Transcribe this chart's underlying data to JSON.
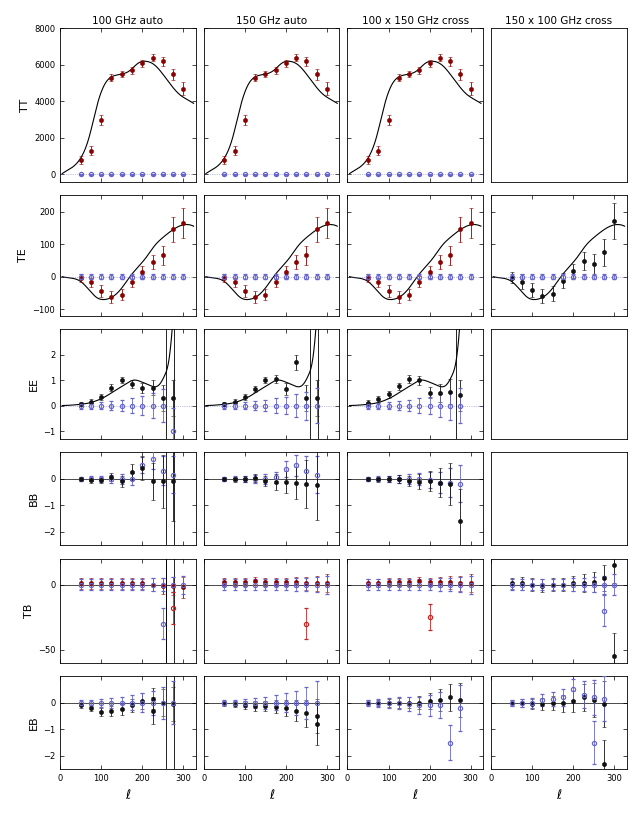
{
  "col_titles": [
    "100 GHz auto",
    "150 GHz auto",
    "100 x 150 GHz cross",
    "150 x 100 GHz cross"
  ],
  "row_labels": [
    "TT",
    "TE",
    "EE",
    "BB",
    "TB",
    "EB"
  ],
  "TT_theory_x": [
    5,
    30,
    50,
    70,
    90,
    110,
    130,
    150,
    170,
    190,
    210,
    230,
    250,
    270,
    290,
    310,
    325
  ],
  "TT_theory_y": [
    50,
    400,
    900,
    2000,
    3800,
    5000,
    5400,
    5500,
    5700,
    6100,
    6200,
    6000,
    5500,
    4900,
    4400,
    4100,
    3900
  ],
  "TE_theory_x": [
    5,
    30,
    50,
    70,
    90,
    110,
    130,
    150,
    170,
    190,
    210,
    230,
    250,
    270,
    290,
    310,
    325
  ],
  "TE_theory_y": [
    0,
    -5,
    -15,
    -40,
    -65,
    -70,
    -60,
    -35,
    0,
    30,
    60,
    95,
    120,
    140,
    155,
    160,
    155
  ],
  "EE_theory_x": [
    5,
    30,
    50,
    70,
    90,
    110,
    130,
    150,
    165,
    180,
    195,
    210,
    225,
    240,
    255,
    265,
    275,
    285,
    295,
    310,
    325
  ],
  "EE_theory_y": [
    0,
    0.02,
    0.05,
    0.1,
    0.2,
    0.35,
    0.55,
    0.75,
    0.9,
    1.0,
    0.95,
    0.85,
    0.75,
    0.8,
    1.2,
    1.8,
    3.5,
    7.0,
    14.0,
    30.0,
    50.0
  ],
  "TT_xd": [
    50,
    75,
    100,
    125,
    150,
    175,
    200,
    225,
    250,
    275,
    300
  ],
  "TT_yd_auto": [
    800,
    1300,
    3000,
    5300,
    5500,
    5700,
    6100,
    6400,
    6200,
    5500,
    4700
  ],
  "TT_ye_auto": [
    200,
    250,
    280,
    200,
    180,
    180,
    200,
    200,
    250,
    300,
    350
  ],
  "TT_yd_blue": [
    0,
    0,
    0,
    0,
    0,
    0,
    0,
    0,
    0,
    0,
    0
  ],
  "TT_ye_blue": [
    25,
    25,
    25,
    25,
    25,
    25,
    25,
    25,
    25,
    25,
    25
  ],
  "TE_xd": [
    50,
    75,
    100,
    125,
    150,
    175,
    200,
    225,
    250,
    275,
    300
  ],
  "TE_yd_auto": [
    -5,
    -18,
    -45,
    -62,
    -55,
    -15,
    15,
    45,
    65,
    145,
    165
  ],
  "TE_ye_auto": [
    12,
    15,
    18,
    18,
    18,
    18,
    18,
    22,
    28,
    38,
    45
  ],
  "TE_yd_blue": [
    0,
    0,
    0,
    0,
    0,
    0,
    0,
    0,
    0,
    0,
    0
  ],
  "TE_ye_blue": [
    8,
    8,
    8,
    8,
    8,
    8,
    8,
    8,
    8,
    8,
    8
  ],
  "TE_yd_col3": [
    -3,
    -15,
    -42,
    -60,
    -52,
    -12,
    18,
    48,
    38,
    75,
    170
  ],
  "TE_ye_col3": [
    18,
    22,
    22,
    22,
    22,
    22,
    22,
    28,
    32,
    42,
    55
  ],
  "EE_xd": [
    50,
    75,
    100,
    125,
    150,
    175,
    200,
    225,
    250,
    275
  ],
  "EE_yd_auto100": [
    0.05,
    0.15,
    0.35,
    0.7,
    1.0,
    0.85,
    0.7,
    0.7,
    0.3,
    0.3
  ],
  "EE_ye_auto100": [
    0.08,
    0.1,
    0.12,
    0.13,
    0.13,
    0.15,
    0.2,
    0.3,
    0.5,
    0.7
  ],
  "EE_yd_auto150": [
    0.05,
    0.15,
    0.35,
    0.65,
    1.0,
    1.05,
    0.65,
    1.7,
    0.3,
    0.3
  ],
  "EE_ye_auto150": [
    0.08,
    0.1,
    0.12,
    0.13,
    0.13,
    0.15,
    0.25,
    0.3,
    0.5,
    0.7
  ],
  "EE_yd_cross": [
    0.1,
    0.25,
    0.45,
    0.75,
    1.05,
    1.0,
    0.5,
    0.5,
    0.55,
    0.4
  ],
  "EE_ye_cross": [
    0.1,
    0.12,
    0.14,
    0.14,
    0.15,
    0.18,
    0.22,
    0.35,
    0.5,
    0.6
  ],
  "EE_yd_blue": [
    0,
    0,
    0,
    0,
    0,
    0,
    0,
    0,
    0,
    0
  ],
  "EE_ye_blue": [
    0.12,
    0.12,
    0.15,
    0.18,
    0.22,
    0.28,
    0.35,
    0.45,
    0.55,
    0.7
  ],
  "EE_ye_blue_100": [
    0.12,
    0.12,
    0.15,
    0.18,
    0.22,
    0.28,
    0.38,
    0.5,
    0.65,
    0.9
  ],
  "EE_yd_blue_100_vals": [
    0,
    0,
    0,
    0,
    0,
    0,
    0,
    0,
    0,
    -1.0
  ],
  "BB_xd": [
    50,
    75,
    100,
    125,
    150,
    175,
    200,
    225,
    250,
    275
  ],
  "BB_yd_100auto_blue": [
    0,
    0,
    0,
    0,
    0,
    0,
    0,
    0,
    0,
    0
  ],
  "BB_ye_100auto_blue": [
    0.08,
    0.1,
    0.12,
    0.15,
    0.18,
    0.22,
    0.3,
    0.4,
    0.55,
    0.7
  ],
  "BB_yd_100auto_black": [
    0.0,
    -0.05,
    -0.05,
    0.05,
    -0.1,
    0.25,
    0.4,
    -0.1,
    -0.1,
    -0.1
  ],
  "BB_ye_100auto_black": [
    0.08,
    0.1,
    0.12,
    0.15,
    0.2,
    0.3,
    0.45,
    0.7,
    1.0,
    1.5
  ],
  "BB_yd_100auto_blue_vals": [
    0,
    0,
    0,
    0,
    0,
    0,
    0.5,
    0.75,
    0.3,
    0.15
  ],
  "BB_yd_150auto_blue": [
    0,
    0,
    0,
    0,
    0,
    0,
    0,
    0,
    0,
    0
  ],
  "BB_ye_150auto_blue": [
    0.08,
    0.1,
    0.12,
    0.15,
    0.18,
    0.22,
    0.3,
    0.4,
    0.55,
    0.7
  ],
  "BB_yd_150auto_black": [
    0.0,
    -0.02,
    0.0,
    0.02,
    -0.08,
    -0.12,
    -0.12,
    -0.15,
    -0.2,
    -0.25
  ],
  "BB_ye_150auto_black": [
    0.08,
    0.1,
    0.12,
    0.15,
    0.2,
    0.3,
    0.4,
    0.6,
    0.9,
    1.3
  ],
  "BB_yd_150auto_blue_vals": [
    0,
    0,
    0,
    0,
    0,
    0.05,
    0.35,
    0.5,
    0.3,
    0.15
  ],
  "BB_yd_cross_blue": [
    0,
    0,
    0,
    0,
    0,
    0,
    0,
    0,
    0,
    0
  ],
  "BB_ye_cross_blue": [
    0.08,
    0.1,
    0.12,
    0.15,
    0.18,
    0.22,
    0.3,
    0.4,
    0.55,
    0.7
  ],
  "BB_yd_cross_black": [
    0.0,
    -0.02,
    0.0,
    0.0,
    -0.08,
    -0.12,
    -0.08,
    -0.15,
    -0.2,
    -1.6
  ],
  "BB_ye_cross_black": [
    0.08,
    0.1,
    0.12,
    0.15,
    0.2,
    0.28,
    0.38,
    0.55,
    0.8,
    1.2
  ],
  "BB_yd_cross_blue_vals": [
    0,
    0,
    0,
    0,
    0,
    0.0,
    -0.05,
    -0.15,
    -0.15,
    -0.18
  ],
  "TB_xd": [
    50,
    75,
    100,
    125,
    150,
    175,
    200,
    225,
    250,
    275,
    300
  ],
  "TB_yd_dark_auto100": [
    1,
    1,
    1,
    1,
    1,
    1,
    1,
    0,
    -1,
    -1,
    -2
  ],
  "TB_ye_dark_auto100": [
    4,
    4,
    4,
    4,
    4,
    4,
    4,
    5,
    6,
    7,
    8
  ],
  "TB_yd_dark_auto150": [
    2,
    2,
    2,
    3,
    2,
    2,
    2,
    2,
    1,
    1,
    1
  ],
  "TB_ye_dark_auto150": [
    3,
    3,
    3,
    3,
    3,
    3,
    3,
    4,
    5,
    6,
    7
  ],
  "TB_yd_dark_cross": [
    1,
    1,
    2,
    2,
    2,
    3,
    2,
    2,
    2,
    1,
    1
  ],
  "TB_ye_dark_cross": [
    3,
    3,
    3,
    3,
    3,
    3,
    3,
    4,
    5,
    6,
    7
  ],
  "TB_yd_blue_auto100": [
    0,
    0,
    0,
    0,
    0,
    0,
    0,
    0,
    0,
    0,
    0
  ],
  "TB_ye_blue_auto100": [
    4,
    4,
    4,
    4,
    4,
    4,
    4,
    5,
    5,
    6,
    7
  ],
  "TB_yd_blue_vals_100": [
    0,
    0,
    0,
    0,
    0,
    0,
    0,
    0,
    -20,
    0,
    0
  ],
  "TB_redopen_x_100": [
    275
  ],
  "TB_redopen_y_100": [
    -18
  ],
  "TB_redopen_e_100": [
    12
  ],
  "TB_blueopen_x_100": [
    250
  ],
  "TB_blueopen_y_100": [
    -30
  ],
  "TB_blueopen_e_100": [
    12
  ],
  "TB_yd_blue_auto150": [
    0,
    0,
    0,
    0,
    0,
    0,
    0,
    0,
    0,
    0,
    0
  ],
  "TB_ye_blue_auto150": [
    4,
    4,
    4,
    4,
    4,
    4,
    4,
    5,
    5,
    6,
    7
  ],
  "TB_redopen_x_150": [
    250
  ],
  "TB_redopen_y_150": [
    -30
  ],
  "TB_redopen_e_150": [
    12
  ],
  "TB_yd_blue_cross": [
    0,
    0,
    0,
    0,
    0,
    0,
    0,
    0,
    0,
    0,
    0
  ],
  "TB_ye_blue_cross": [
    4,
    4,
    4,
    4,
    4,
    4,
    4,
    5,
    5,
    6,
    7
  ],
  "TB_redopen_x_cross": [
    200
  ],
  "TB_redopen_y_cross": [
    -25
  ],
  "TB_redopen_e_cross": [
    10
  ],
  "TB_xd_col3": [
    50,
    75,
    100,
    125,
    150,
    175,
    200,
    225,
    250,
    275,
    300
  ],
  "TB_yd_col3_black": [
    1,
    1,
    0,
    -1,
    0,
    0,
    1,
    1,
    2,
    5,
    15
  ],
  "TB_ye_col3_black": [
    4,
    5,
    5,
    5,
    5,
    5,
    6,
    7,
    8,
    10,
    14
  ],
  "TB_yd_col3_blue": [
    0,
    0,
    0,
    0,
    0,
    0,
    0,
    0,
    0,
    0,
    0
  ],
  "TB_ye_col3_blue": [
    4,
    4,
    4,
    4,
    4,
    4,
    5,
    5,
    6,
    7,
    8
  ],
  "TB_col3_black_bigpoint_x": [
    300
  ],
  "TB_col3_black_bigpoint_y": [
    -55
  ],
  "TB_col3_black_bigpoint_e": [
    18
  ],
  "TB_col3_blue_bigpoint_x": [
    275
  ],
  "TB_col3_blue_bigpoint_y": [
    -20
  ],
  "TB_col3_blue_bigpoint_e": [
    12
  ],
  "EB_xd": [
    50,
    75,
    100,
    125,
    150,
    175,
    200,
    225,
    250,
    275
  ],
  "EB_yd_100auto_black": [
    -0.1,
    -0.2,
    -0.35,
    -0.3,
    -0.25,
    -0.1,
    0.05,
    0.15,
    0.0,
    -0.05
  ],
  "EB_ye_100auto_black": [
    0.1,
    0.12,
    0.15,
    0.18,
    0.2,
    0.25,
    0.3,
    0.4,
    0.5,
    0.65
  ],
  "EB_yd_100auto_blue": [
    0,
    0,
    0,
    0,
    0,
    0,
    0,
    0,
    0,
    0
  ],
  "EB_ye_100auto_blue": [
    0.1,
    0.12,
    0.15,
    0.18,
    0.22,
    0.28,
    0.35,
    0.45,
    0.6,
    0.8
  ],
  "EB_bigpoint_x_100": [
    225
  ],
  "EB_bigpoint_y_100": [
    -0.3
  ],
  "EB_bigpoint_e_100": [
    0.5
  ],
  "EB_yd_150auto_black": [
    -0.02,
    -0.05,
    -0.1,
    -0.12,
    -0.12,
    -0.15,
    -0.2,
    -0.3,
    -0.4,
    -0.5
  ],
  "EB_ye_150auto_black": [
    0.1,
    0.12,
    0.15,
    0.18,
    0.2,
    0.25,
    0.3,
    0.4,
    0.5,
    0.65
  ],
  "EB_yd_150auto_blue": [
    0,
    0,
    0,
    0,
    0,
    0,
    0,
    0,
    0,
    0
  ],
  "EB_ye_150auto_blue": [
    0.1,
    0.12,
    0.15,
    0.18,
    0.22,
    0.28,
    0.35,
    0.45,
    0.6,
    0.8
  ],
  "EB_bigpoint_x_150": [
    275
  ],
  "EB_bigpoint_y_150": [
    -0.8
  ],
  "EB_bigpoint_e_150": [
    0.8
  ],
  "EB_yd_cross_black": [
    0,
    0,
    0,
    0,
    0,
    0,
    0.05,
    0.1,
    0.2,
    0.1
  ],
  "EB_ye_cross_black": [
    0.1,
    0.12,
    0.15,
    0.18,
    0.2,
    0.25,
    0.3,
    0.4,
    0.5,
    0.65
  ],
  "EB_yd_cross_blue": [
    0,
    0,
    0,
    0,
    -0.05,
    -0.1,
    -0.1,
    -0.08,
    -1.5,
    -0.2
  ],
  "EB_ye_cross_blue": [
    0.12,
    0.15,
    0.18,
    0.22,
    0.26,
    0.32,
    0.4,
    0.5,
    0.65,
    0.85
  ],
  "EB_yd_col3_black": [
    0,
    0,
    -0.05,
    -0.05,
    0,
    -0.02,
    0.05,
    0.2,
    0.1,
    -0.05
  ],
  "EB_ye_col3_black": [
    0.12,
    0.15,
    0.18,
    0.22,
    0.26,
    0.32,
    0.4,
    0.5,
    0.65,
    0.85
  ],
  "EB_yd_col3_blue": [
    0,
    0,
    0,
    0.1,
    0.15,
    0.2,
    0.5,
    0.3,
    0.2,
    0.15
  ],
  "EB_ye_col3_blue": [
    0.12,
    0.15,
    0.18,
    0.22,
    0.26,
    0.32,
    0.4,
    0.5,
    0.65,
    0.85
  ],
  "EB_col3_black_big_x": [
    275
  ],
  "EB_col3_black_big_y": [
    -2.3
  ],
  "EB_col3_black_big_e": [
    0.9
  ],
  "EB_col3_blue_big_x": [
    250
  ],
  "EB_col3_blue_big_y": [
    -1.5
  ],
  "EB_col3_blue_big_e": [
    0.8
  ],
  "color_darkred": "#8B0000",
  "color_blue": "#6666CC",
  "color_black": "#111111",
  "color_red_open": "#CC2222",
  "TT_ylim": [
    -400,
    8000
  ],
  "TE_ylim": [
    -120,
    250
  ],
  "EE_ylim": [
    -1.3,
    3.0
  ],
  "BB_ylim": [
    -2.5,
    1.0
  ],
  "TB_ylim": [
    -60,
    20
  ],
  "EB_ylim": [
    -2.5,
    1.0
  ],
  "xlim": [
    0,
    330
  ],
  "xticks": [
    0,
    100,
    200,
    300
  ]
}
